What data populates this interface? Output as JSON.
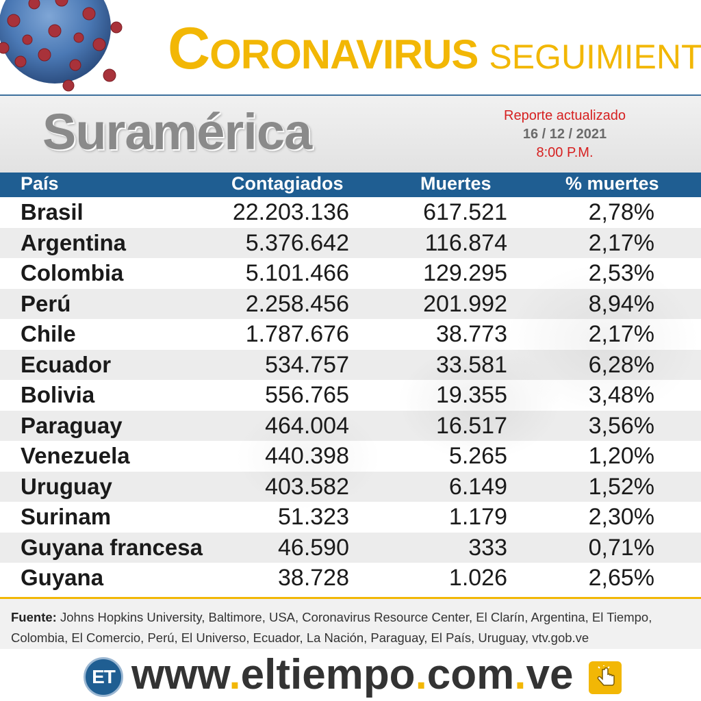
{
  "header": {
    "title_first_letter": "C",
    "title_rest": "ORONAVIRUS",
    "title_second": "SEGUIMIENTO",
    "virus_icon": "coronavirus-icon",
    "accent_color": "#f2b705"
  },
  "region": {
    "name": "Suramérica",
    "report_line1": "Reporte actualizado",
    "report_date": "16 / 12 / 2021",
    "report_time": "8:00 P.M."
  },
  "table": {
    "columns": [
      "País",
      "Contagiados",
      "Muertes",
      "% muertes"
    ],
    "rows": [
      {
        "pais": "Brasil",
        "contagiados": "22.203.136",
        "muertes": "617.521",
        "pct": "2,78%"
      },
      {
        "pais": "Argentina",
        "contagiados": "5.376.642",
        "muertes": "116.874",
        "pct": "2,17%"
      },
      {
        "pais": "Colombia",
        "contagiados": "5.101.466",
        "muertes": "129.295",
        "pct": "2,53%"
      },
      {
        "pais": "Perú",
        "contagiados": "2.258.456",
        "muertes": "201.992",
        "pct": "8,94%"
      },
      {
        "pais": "Chile",
        "contagiados": "1.787.676",
        "muertes": "38.773",
        "pct": "2,17%"
      },
      {
        "pais": "Ecuador",
        "contagiados": "534.757",
        "muertes": "33.581",
        "pct": "6,28%"
      },
      {
        "pais": "Bolivia",
        "contagiados": "556.765",
        "muertes": "19.355",
        "pct": "3,48%"
      },
      {
        "pais": "Paraguay",
        "contagiados": "464.004",
        "muertes": "16.517",
        "pct": "3,56%"
      },
      {
        "pais": "Venezuela",
        "contagiados": "440.398",
        "muertes": "5.265",
        "pct": "1,20%"
      },
      {
        "pais": "Uruguay",
        "contagiados": "403.582",
        "muertes": "6.149",
        "pct": "1,52%"
      },
      {
        "pais": "Surinam",
        "contagiados": "51.323",
        "muertes": "1.179",
        "pct": "2,30%"
      },
      {
        "pais": "Guyana francesa",
        "contagiados": "46.590",
        "muertes": "333",
        "pct": "0,71%"
      },
      {
        "pais": "Guyana",
        "contagiados": "38.728",
        "muertes": "1.026",
        "pct": "2,65%"
      }
    ]
  },
  "footer": {
    "source_label": "Fuente:",
    "source_text": " Johns Hopkins University, Baltimore, USA, Coronavirus Resource Center,  El Clarín, Argentina, El Tiempo, Colombia, El Comercio, Perú, El Universo, Ecuador, La Nación, Paraguay, El País, Uruguay, vtv.gob.ve",
    "logo_text": "ET",
    "url_parts": [
      "www",
      ".",
      "eltiempo",
      ".",
      "com",
      ".",
      "ve"
    ],
    "hand_icon": "pointer-hand-icon"
  }
}
